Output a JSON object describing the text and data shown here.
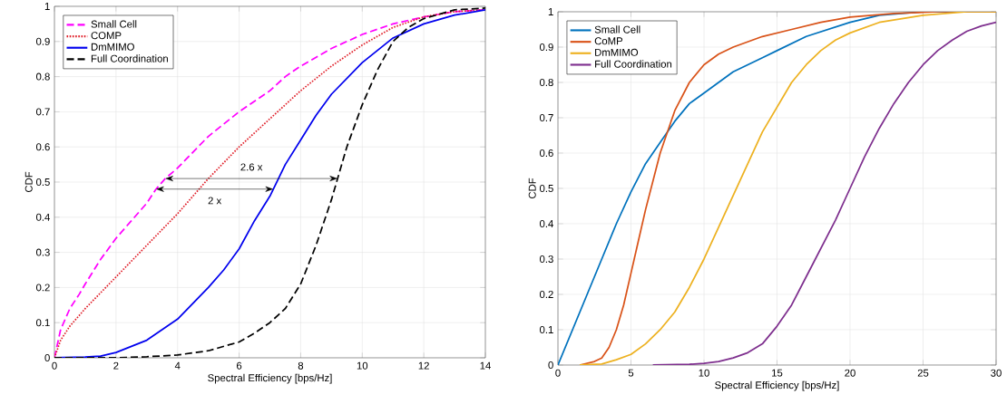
{
  "chart_data": [
    {
      "type": "line",
      "xlabel": "Spectral Efficiency [bps/Hz]",
      "ylabel": "CDF",
      "xlim": [
        0,
        14
      ],
      "ylim": [
        0,
        1
      ],
      "xticks": [
        0,
        2,
        4,
        6,
        8,
        10,
        12,
        14
      ],
      "yticks": [
        0,
        0.1,
        0.2,
        0.3,
        0.4,
        0.5,
        0.6,
        0.7,
        0.8,
        0.9,
        1
      ],
      "grid": true,
      "legend": "top left",
      "marker": "none",
      "series": [
        {
          "name": "Small Cell",
          "color": "#ff00ff",
          "line_style": "dashed",
          "x": [
            0,
            0.2,
            0.5,
            0.8,
            1,
            1.5,
            2,
            2.5,
            3,
            3.3,
            3.6,
            4,
            5,
            6,
            7,
            7.5,
            8,
            9,
            10,
            11,
            12,
            13,
            14
          ],
          "values": [
            0,
            0.08,
            0.14,
            0.18,
            0.21,
            0.28,
            0.34,
            0.39,
            0.44,
            0.48,
            0.51,
            0.54,
            0.63,
            0.7,
            0.76,
            0.8,
            0.83,
            0.88,
            0.92,
            0.95,
            0.97,
            0.985,
            0.99
          ]
        },
        {
          "name": "COMP",
          "color": "#e0202a",
          "line_style": "dotted",
          "x": [
            0,
            0.2,
            0.5,
            1,
            2,
            3,
            4,
            5,
            6,
            7,
            8,
            9,
            10,
            11,
            12,
            13,
            14
          ],
          "values": [
            0,
            0.05,
            0.09,
            0.14,
            0.23,
            0.32,
            0.41,
            0.51,
            0.6,
            0.68,
            0.76,
            0.83,
            0.89,
            0.94,
            0.97,
            0.985,
            0.99
          ]
        },
        {
          "name": "DmMIMO",
          "color": "#0000ee",
          "line_style": "solid",
          "x": [
            0,
            1,
            1.5,
            2,
            3,
            4,
            5,
            5.5,
            6,
            6.5,
            7,
            7.5,
            8,
            8.5,
            9,
            10,
            11,
            12,
            13,
            14
          ],
          "values": [
            0,
            0.002,
            0.005,
            0.015,
            0.05,
            0.11,
            0.2,
            0.25,
            0.31,
            0.39,
            0.46,
            0.55,
            0.62,
            0.69,
            0.75,
            0.84,
            0.91,
            0.95,
            0.975,
            0.99
          ]
        },
        {
          "name": "Full Coordination",
          "color": "#000000",
          "line_style": "dashed",
          "x": [
            0,
            2,
            3,
            4,
            5,
            6,
            6.5,
            7,
            7.5,
            8,
            8.5,
            9,
            9.5,
            10,
            10.5,
            11,
            11.5,
            12,
            13,
            14
          ],
          "values": [
            0,
            0,
            0.003,
            0.008,
            0.02,
            0.045,
            0.07,
            0.1,
            0.14,
            0.21,
            0.32,
            0.45,
            0.6,
            0.72,
            0.82,
            0.9,
            0.94,
            0.965,
            0.99,
            0.995
          ]
        }
      ],
      "annotations": [
        "2.6 x",
        "2 x"
      ]
    },
    {
      "type": "line",
      "xlabel": "Spectral Efficiency [bps/Hz]",
      "ylabel": "CDF",
      "xlim": [
        0,
        30
      ],
      "ylim": [
        0,
        1
      ],
      "xticks": [
        0,
        5,
        10,
        15,
        20,
        25,
        30
      ],
      "yticks": [
        0,
        0.1,
        0.2,
        0.3,
        0.4,
        0.5,
        0.6,
        0.7,
        0.8,
        0.9,
        1
      ],
      "grid": true,
      "legend": "top left",
      "marker": "none",
      "line_style": "solid",
      "series": [
        {
          "name": "Small Cell",
          "color": "#0072bd",
          "x": [
            0,
            0.5,
            1,
            2,
            3,
            4,
            5,
            6,
            7,
            8,
            9,
            10,
            12,
            14,
            15,
            17,
            20,
            22,
            25,
            30
          ],
          "values": [
            0,
            0.05,
            0.1,
            0.2,
            0.3,
            0.4,
            0.49,
            0.57,
            0.63,
            0.69,
            0.74,
            0.77,
            0.83,
            0.87,
            0.89,
            0.93,
            0.97,
            0.99,
            1,
            1
          ]
        },
        {
          "name": "CoMP",
          "color": "#d95319",
          "x": [
            1.5,
            2.5,
            3,
            3.5,
            4,
            4.5,
            5,
            5.5,
            6,
            7,
            8,
            9,
            10,
            11,
            12,
            14,
            16,
            18,
            20,
            23,
            26,
            30
          ],
          "values": [
            0,
            0.01,
            0.02,
            0.05,
            0.1,
            0.17,
            0.26,
            0.35,
            0.44,
            0.6,
            0.72,
            0.8,
            0.85,
            0.88,
            0.9,
            0.93,
            0.95,
            0.97,
            0.985,
            0.995,
            1,
            1
          ]
        },
        {
          "name": "DmMIMO",
          "color": "#edb120",
          "x": [
            1.5,
            3,
            4,
            5,
            6,
            7,
            8,
            9,
            10,
            11,
            12,
            13,
            14,
            15,
            16,
            17,
            18,
            19,
            20,
            22,
            25,
            28,
            30
          ],
          "values": [
            0,
            0.003,
            0.015,
            0.03,
            0.06,
            0.1,
            0.15,
            0.22,
            0.3,
            0.39,
            0.48,
            0.57,
            0.66,
            0.73,
            0.8,
            0.85,
            0.89,
            0.92,
            0.94,
            0.97,
            0.99,
            1,
            1
          ]
        },
        {
          "name": "Full Coordination",
          "color": "#7e2f8e",
          "x": [
            6.5,
            9,
            10,
            11,
            12,
            13,
            14,
            15,
            16,
            17,
            18,
            19,
            20,
            21,
            22,
            23,
            24,
            25,
            26,
            27,
            28,
            29,
            30
          ],
          "values": [
            0,
            0.002,
            0.005,
            0.01,
            0.02,
            0.035,
            0.06,
            0.11,
            0.17,
            0.25,
            0.33,
            0.41,
            0.5,
            0.59,
            0.67,
            0.74,
            0.8,
            0.85,
            0.89,
            0.92,
            0.945,
            0.96,
            0.97
          ]
        }
      ]
    }
  ]
}
